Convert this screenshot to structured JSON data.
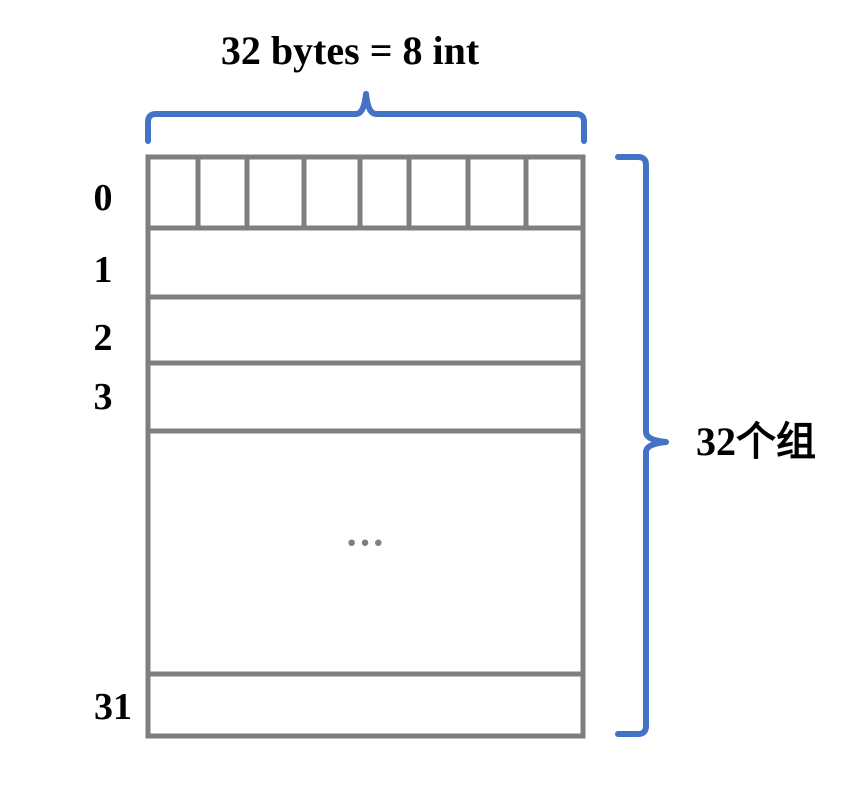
{
  "top_label": "32 bytes = 8 int",
  "side_label": "32个组",
  "ellipsis": "···",
  "row_labels": [
    "0",
    "1",
    "2",
    "3",
    "31"
  ],
  "colors": {
    "grid": "#7f7f7f",
    "brace": "#4472c4",
    "text": "#000000"
  }
}
